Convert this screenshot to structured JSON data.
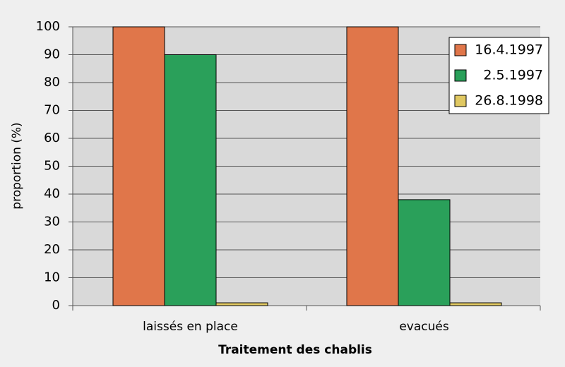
{
  "chart_data": {
    "type": "bar",
    "x_label": "Traitement des chablis",
    "y_label": "proportion (%)",
    "categories": [
      "laissés en place",
      "evacués"
    ],
    "series": [
      {
        "name": "16.4.1997",
        "color": "#e0764a",
        "values": [
          100,
          100
        ]
      },
      {
        "name": "2.5.1997",
        "color": "#2aa05a",
        "values": [
          90,
          38
        ]
      },
      {
        "name": "26.8.1998",
        "color": "#e0c862",
        "values": [
          1,
          1
        ]
      }
    ],
    "ylim": [
      0,
      100
    ],
    "yticks": [
      0,
      10,
      20,
      30,
      40,
      50,
      60,
      70,
      80,
      90,
      100
    ],
    "grid": true,
    "legend": "upper right"
  }
}
